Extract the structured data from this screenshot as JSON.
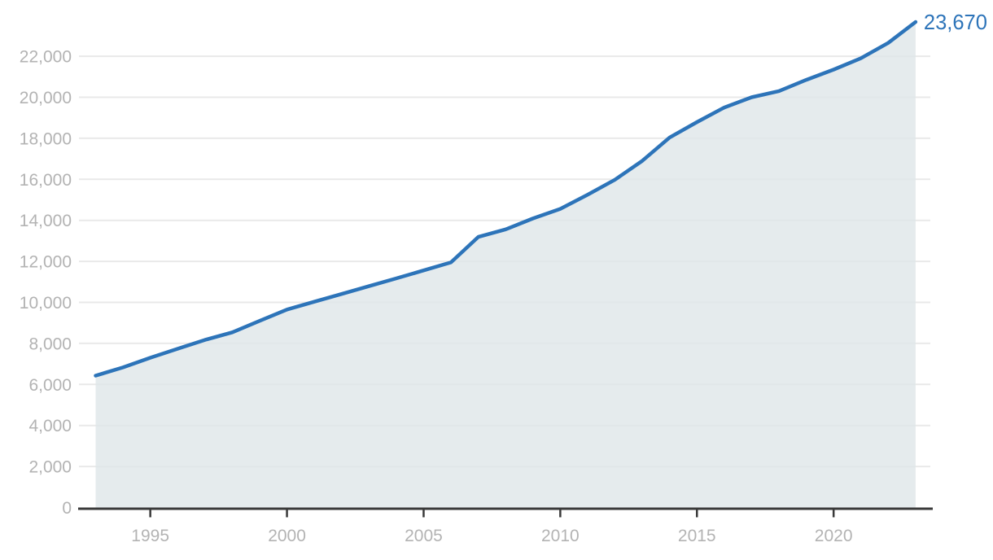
{
  "chart_data": {
    "type": "area",
    "x": [
      1993,
      1994,
      1995,
      1996,
      1997,
      1998,
      1999,
      2000,
      2001,
      2002,
      2003,
      2004,
      2005,
      2006,
      2007,
      2008,
      2009,
      2010,
      2011,
      2012,
      2013,
      2014,
      2015,
      2016,
      2017,
      2018,
      2019,
      2020,
      2021,
      2022,
      2023
    ],
    "values": [
      6430,
      6830,
      7300,
      7740,
      8170,
      8540,
      9100,
      9650,
      10030,
      10410,
      10790,
      11170,
      11560,
      11950,
      13190,
      13560,
      14090,
      14560,
      15250,
      15980,
      16900,
      18040,
      18790,
      19500,
      20000,
      20300,
      20850,
      21350,
      21900,
      22650,
      23670
    ],
    "title": "",
    "xlabel": "",
    "ylabel": "",
    "xlim": [
      1993,
      2023
    ],
    "ylim": [
      0,
      24000
    ],
    "grid": "horizontal",
    "legend": "none",
    "end_label": "23,670",
    "y_ticks": [
      {
        "value": 0,
        "label": "0"
      },
      {
        "value": 2000,
        "label": "2,000"
      },
      {
        "value": 4000,
        "label": "4,000"
      },
      {
        "value": 6000,
        "label": "6,000"
      },
      {
        "value": 8000,
        "label": "8,000"
      },
      {
        "value": 10000,
        "label": "10,000"
      },
      {
        "value": 12000,
        "label": "12,000"
      },
      {
        "value": 14000,
        "label": "14,000"
      },
      {
        "value": 16000,
        "label": "16,000"
      },
      {
        "value": 18000,
        "label": "18,000"
      },
      {
        "value": 20000,
        "label": "20,000"
      },
      {
        "value": 22000,
        "label": "22,000"
      }
    ],
    "x_ticks": [
      {
        "value": 1995,
        "label": "1995"
      },
      {
        "value": 2000,
        "label": "2000"
      },
      {
        "value": 2005,
        "label": "2005"
      },
      {
        "value": 2010,
        "label": "2010"
      },
      {
        "value": 2015,
        "label": "2015"
      },
      {
        "value": 2020,
        "label": "2020"
      }
    ],
    "colors": {
      "line": "#2d74b9",
      "area_fill": "#dfe7e9",
      "gridline": "#e9e9e9",
      "axis": "#3a3a3a",
      "tick_label": "#b3b3b3",
      "end_label": "#2d74b9"
    }
  }
}
